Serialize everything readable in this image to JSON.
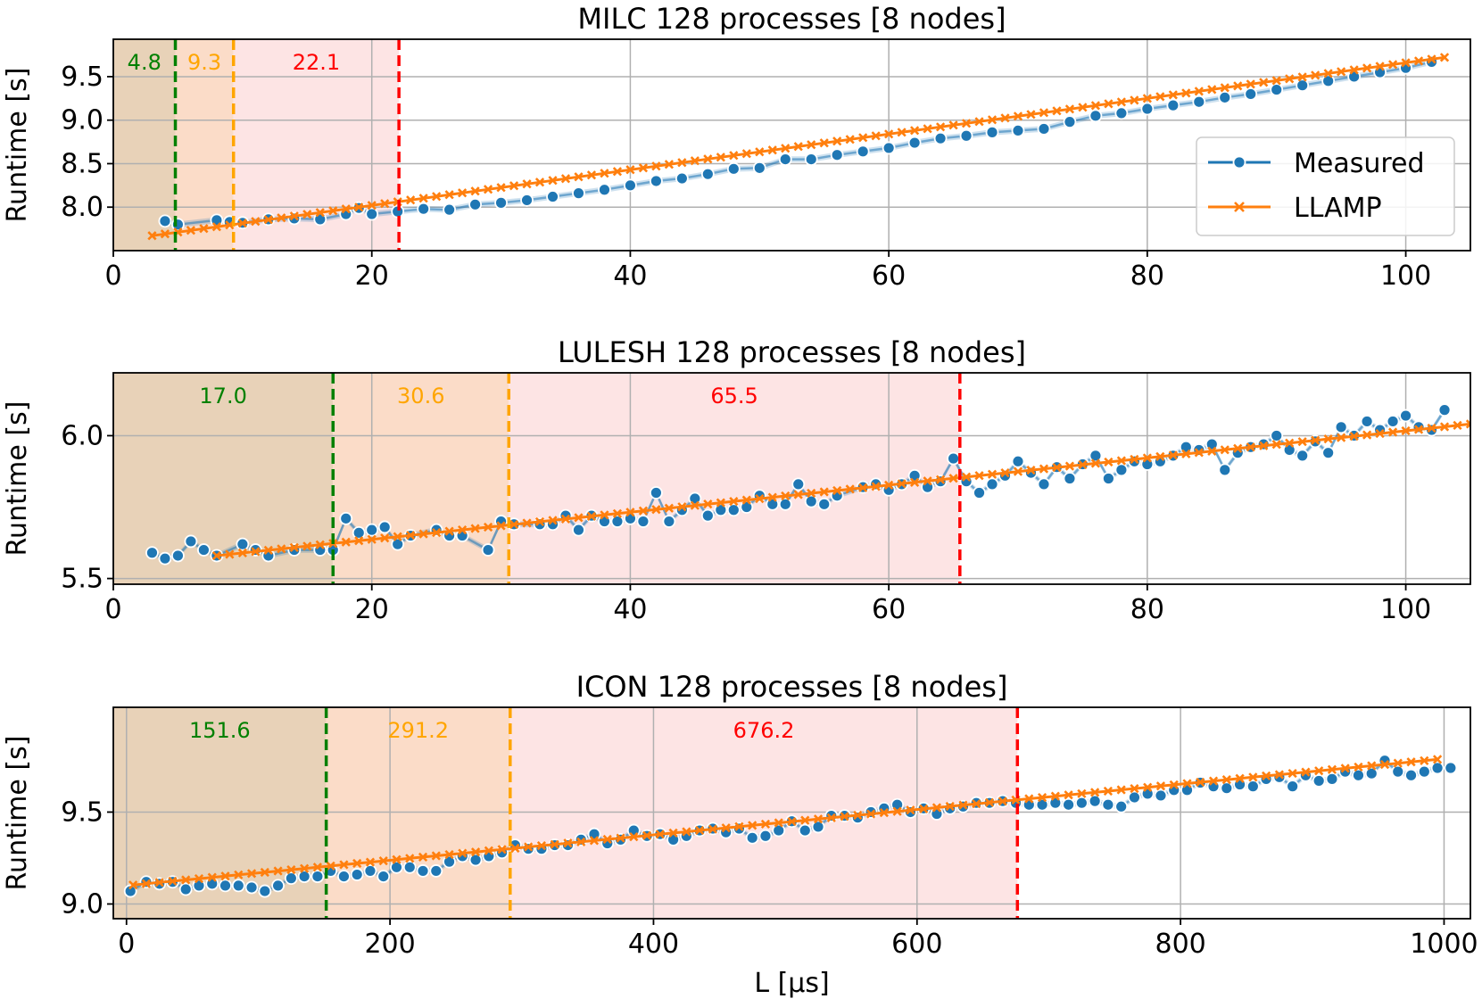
{
  "figure": {
    "xlabel": "L [µs]"
  },
  "colors": {
    "measured": "#1f77b4",
    "llamp": "#ff7f0e",
    "green": "#008000",
    "orange": "#ffa500",
    "red": "#ff0000",
    "region_green": "#e8d2b8",
    "region_orange": "#fbdcc8",
    "region_red": "#fde4e4"
  },
  "chart_data": [
    {
      "type": "line",
      "title": "MILC 128 processes [8 nodes]",
      "xlabel": "",
      "ylabel": "Runtime [s]",
      "xlim": [
        0,
        105
      ],
      "ylim": [
        7.5,
        9.93
      ],
      "xticks": [
        0,
        20,
        40,
        60,
        80,
        100
      ],
      "yticks": [
        8.0,
        8.5,
        9.0,
        9.5
      ],
      "ytick_format": 1,
      "grid": true,
      "legend": {
        "position": "right",
        "entries": [
          "Measured",
          "LLAMP"
        ]
      },
      "thresholds": [
        {
          "value": 4.8,
          "label": "4.8",
          "color": "green"
        },
        {
          "value": 9.3,
          "label": "9.3",
          "color": "orange"
        },
        {
          "value": 22.1,
          "label": "22.1",
          "color": "red"
        }
      ],
      "llamp": {
        "x_start": 3,
        "x_end": 103,
        "step": 1,
        "intercept": 7.61,
        "slope": 0.0205
      },
      "series": [
        {
          "name": "Measured",
          "x": [
            4,
            5,
            8,
            9,
            10,
            12,
            14,
            16,
            18,
            19,
            20,
            22,
            24,
            26,
            28,
            30,
            32,
            34,
            36,
            38,
            40,
            42,
            44,
            46,
            48,
            50,
            52,
            54,
            56,
            58,
            60,
            62,
            64,
            66,
            68,
            70,
            72,
            74,
            76,
            78,
            80,
            82,
            84,
            86,
            88,
            90,
            92,
            94,
            96,
            98,
            100,
            102
          ],
          "values": [
            7.84,
            7.8,
            7.85,
            7.83,
            7.82,
            7.86,
            7.87,
            7.86,
            7.92,
            7.99,
            7.92,
            7.95,
            7.98,
            7.97,
            8.03,
            8.05,
            8.08,
            8.12,
            8.16,
            8.2,
            8.25,
            8.3,
            8.33,
            8.38,
            8.44,
            8.45,
            8.55,
            8.55,
            8.6,
            8.64,
            8.68,
            8.74,
            8.79,
            8.82,
            8.86,
            8.88,
            8.9,
            8.98,
            9.05,
            9.08,
            9.13,
            9.17,
            9.21,
            9.26,
            9.3,
            9.35,
            9.4,
            9.45,
            9.5,
            9.55,
            9.6,
            9.67
          ]
        }
      ]
    },
    {
      "type": "line",
      "title": "LULESH 128 processes [8 nodes]",
      "xlabel": "",
      "ylabel": "Runtime [s]",
      "xlim": [
        0,
        105
      ],
      "ylim": [
        5.48,
        6.22
      ],
      "xticks": [
        0,
        20,
        40,
        60,
        80,
        100
      ],
      "yticks": [
        5.5,
        6.0
      ],
      "ytick_format": 1,
      "grid": true,
      "thresholds": [
        {
          "value": 17.0,
          "label": "17.0",
          "color": "green"
        },
        {
          "value": 30.6,
          "label": "30.6",
          "color": "orange"
        },
        {
          "value": 65.5,
          "label": "65.5",
          "color": "red"
        }
      ],
      "llamp": {
        "x_start": 8,
        "x_end": 105,
        "step": 1,
        "intercept": 5.542,
        "slope": 0.00475
      },
      "series": [
        {
          "name": "Measured",
          "x": [
            3,
            4,
            5,
            6,
            7,
            8,
            10,
            11,
            12,
            14,
            16,
            17,
            18,
            19,
            20,
            21,
            22,
            23,
            25,
            26,
            27,
            29,
            30,
            31,
            33,
            34,
            35,
            36,
            37,
            38,
            39,
            40,
            41,
            42,
            43,
            44,
            45,
            46,
            47,
            48,
            49,
            50,
            51,
            52,
            53,
            54,
            55,
            56,
            58,
            59,
            60,
            61,
            62,
            63,
            64,
            65,
            66,
            67,
            68,
            69,
            70,
            71,
            72,
            73,
            74,
            75,
            76,
            77,
            78,
            79,
            80,
            81,
            82,
            83,
            84,
            85,
            86,
            87,
            88,
            89,
            90,
            91,
            92,
            93,
            94,
            95,
            96,
            97,
            98,
            99,
            100,
            101,
            102,
            103
          ],
          "values": [
            5.59,
            5.57,
            5.58,
            5.63,
            5.6,
            5.58,
            5.62,
            5.6,
            5.58,
            5.6,
            5.6,
            5.6,
            5.71,
            5.66,
            5.67,
            5.68,
            5.62,
            5.65,
            5.67,
            5.65,
            5.65,
            5.6,
            5.7,
            5.69,
            5.69,
            5.69,
            5.72,
            5.67,
            5.72,
            5.7,
            5.7,
            5.71,
            5.7,
            5.8,
            5.7,
            5.74,
            5.78,
            5.72,
            5.74,
            5.74,
            5.75,
            5.79,
            5.76,
            5.76,
            5.83,
            5.77,
            5.76,
            5.79,
            5.82,
            5.83,
            5.81,
            5.83,
            5.86,
            5.82,
            5.84,
            5.92,
            5.84,
            5.8,
            5.83,
            5.86,
            5.91,
            5.87,
            5.83,
            5.89,
            5.85,
            5.9,
            5.93,
            5.85,
            5.88,
            5.91,
            5.9,
            5.91,
            5.93,
            5.96,
            5.95,
            5.97,
            5.88,
            5.94,
            5.96,
            5.97,
            6.0,
            5.95,
            5.93,
            5.98,
            5.94,
            6.03,
            6.0,
            6.05,
            6.02,
            6.05,
            6.07,
            6.03,
            6.02,
            6.09
          ]
        }
      ]
    },
    {
      "type": "line",
      "title": "ICON 128 processes [8 nodes]",
      "xlabel": "L [µs]",
      "ylabel": "Runtime [s]",
      "xlim": [
        -10,
        1020
      ],
      "ylim": [
        8.92,
        10.07
      ],
      "xticks": [
        0,
        200,
        400,
        600,
        800,
        1000
      ],
      "yticks": [
        9.0,
        9.5
      ],
      "ytick_format": 1,
      "grid": true,
      "thresholds": [
        {
          "value": 151.6,
          "label": "151.6",
          "color": "green"
        },
        {
          "value": 291.2,
          "label": "291.2",
          "color": "orange"
        },
        {
          "value": 676.2,
          "label": "676.2",
          "color": "red"
        }
      ],
      "llamp": {
        "x_start": 5,
        "x_end": 1000,
        "step": 10,
        "intercept": 9.1,
        "slope": 0.00069
      },
      "series": [
        {
          "name": "Measured",
          "x": [
            3,
            15,
            25,
            35,
            45,
            55,
            65,
            75,
            85,
            95,
            105,
            115,
            125,
            135,
            145,
            155,
            165,
            175,
            185,
            195,
            205,
            215,
            225,
            235,
            245,
            255,
            265,
            275,
            285,
            295,
            305,
            315,
            325,
            335,
            345,
            355,
            365,
            375,
            385,
            395,
            405,
            415,
            425,
            435,
            445,
            455,
            465,
            475,
            485,
            495,
            505,
            515,
            525,
            535,
            545,
            555,
            565,
            575,
            585,
            595,
            605,
            615,
            625,
            635,
            645,
            655,
            665,
            675,
            685,
            695,
            705,
            715,
            725,
            735,
            745,
            755,
            765,
            775,
            785,
            795,
            805,
            815,
            825,
            835,
            845,
            855,
            865,
            875,
            885,
            895,
            905,
            915,
            925,
            935,
            945,
            955,
            965,
            975,
            985,
            995,
            1005
          ],
          "values": [
            9.07,
            9.12,
            9.11,
            9.12,
            9.08,
            9.1,
            9.11,
            9.1,
            9.1,
            9.09,
            9.07,
            9.1,
            9.14,
            9.15,
            9.15,
            9.18,
            9.15,
            9.16,
            9.18,
            9.15,
            9.2,
            9.2,
            9.18,
            9.18,
            9.23,
            9.26,
            9.24,
            9.26,
            9.28,
            9.32,
            9.3,
            9.3,
            9.32,
            9.32,
            9.35,
            9.38,
            9.33,
            9.35,
            9.4,
            9.37,
            9.38,
            9.35,
            9.37,
            9.4,
            9.41,
            9.39,
            9.41,
            9.36,
            9.37,
            9.4,
            9.45,
            9.4,
            9.42,
            9.48,
            9.48,
            9.47,
            9.5,
            9.52,
            9.54,
            9.5,
            9.52,
            9.49,
            9.52,
            9.53,
            9.55,
            9.55,
            9.56,
            9.55,
            9.54,
            9.54,
            9.55,
            9.54,
            9.55,
            9.56,
            9.54,
            9.53,
            9.58,
            9.6,
            9.59,
            9.62,
            9.62,
            9.66,
            9.64,
            9.63,
            9.65,
            9.64,
            9.68,
            9.69,
            9.64,
            9.7,
            9.67,
            9.68,
            9.72,
            9.7,
            9.71,
            9.78,
            9.72,
            9.7,
            9.72,
            9.74,
            9.74
          ]
        }
      ]
    }
  ]
}
